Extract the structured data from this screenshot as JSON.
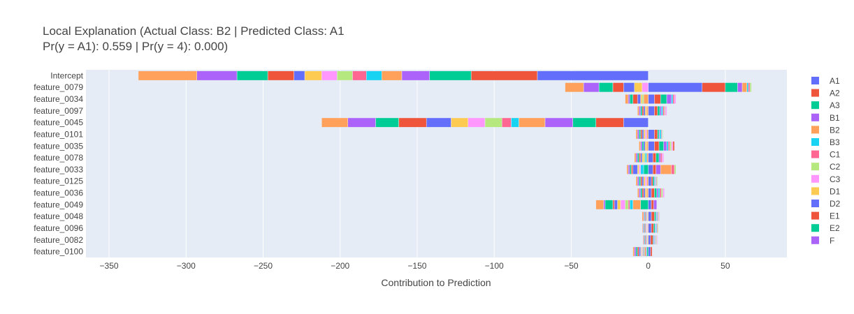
{
  "chart_data": {
    "type": "bar",
    "orientation": "horizontal",
    "barmode": "relative",
    "title": "Local Explanation (Actual Class: B2 | Predicted Class: A1",
    "subtitle": "Pr(y = A1): 0.559 | Pr(y = 4): 0.000)",
    "xlabel": "Contribution to Prediction",
    "ylabel": "",
    "xlim": [
      -365,
      90
    ],
    "x_ticks": [
      -350,
      -300,
      -250,
      -200,
      -150,
      -100,
      -50,
      0,
      50
    ],
    "x_tick_labels": [
      "−350",
      "−300",
      "−250",
      "−200",
      "−150",
      "−100",
      "−50",
      "0",
      "50"
    ],
    "grid": true,
    "legend_position": "right",
    "categories": [
      "Intercept",
      "feature_0079",
      "feature_0034",
      "feature_0097",
      "feature_0045",
      "feature_0101",
      "feature_0035",
      "feature_0078",
      "feature_0033",
      "feature_0125",
      "feature_0036",
      "feature_0049",
      "feature_0048",
      "feature_0096",
      "feature_0082",
      "feature_0100"
    ],
    "series": [
      {
        "name": "A1",
        "color": "#636efa",
        "values": [
          -72,
          35,
          4,
          4,
          -16,
          4,
          4,
          3,
          3,
          2,
          2,
          2,
          2,
          2,
          1.5,
          1.5
        ]
      },
      {
        "name": "A2",
        "color": "#EF553B",
        "values": [
          -43,
          15,
          4,
          2,
          -18,
          2,
          3,
          2,
          2,
          1,
          2,
          1.5,
          2,
          1.5,
          1.5,
          1
        ]
      },
      {
        "name": "A3",
        "color": "#00cc96",
        "values": [
          -27,
          8,
          4,
          1.5,
          -15,
          1,
          3,
          2,
          -3,
          1,
          1.5,
          -5,
          1,
          1,
          0.5,
          -1
        ]
      },
      {
        "name": "B1",
        "color": "#ab63fa",
        "values": [
          -18,
          3,
          3,
          1,
          -18,
          0.5,
          2,
          1,
          3,
          0.5,
          1,
          2,
          0.5,
          0.5,
          0.5,
          -0.5
        ]
      },
      {
        "name": "B2",
        "color": "#FFA15A",
        "values": [
          -13,
          3,
          -3,
          -1,
          -17,
          -1,
          -1,
          -1,
          7,
          -1,
          -1,
          -5,
          -0.5,
          -0.5,
          -0.5,
          -1
        ]
      },
      {
        "name": "B3",
        "color": "#19d3f3",
        "values": [
          -10,
          1,
          1,
          1,
          -5,
          1,
          1,
          -1,
          -2,
          0.5,
          1,
          -2,
          0.5,
          0.5,
          0.5,
          -0.5
        ]
      },
      {
        "name": "C1",
        "color": "#FF6692",
        "values": [
          -9,
          1,
          1,
          1,
          -6,
          0.5,
          1,
          1,
          2,
          0.5,
          1,
          -1,
          0.5,
          0.5,
          0.5,
          -0.5
        ]
      },
      {
        "name": "C2",
        "color": "#B6E880",
        "values": [
          -10,
          1,
          -1,
          0.5,
          -11,
          0.5,
          1,
          -1,
          1,
          0.5,
          1,
          -2,
          0.5,
          0.5,
          0.5,
          -0.5
        ]
      },
      {
        "name": "C3",
        "color": "#FF97FF",
        "values": [
          -10,
          -4,
          1,
          1,
          -11,
          -1,
          1,
          1,
          -1,
          -1,
          1,
          -3,
          0.5,
          -0.5,
          0.5,
          -0.5
        ]
      },
      {
        "name": "D1",
        "color": "#FECB52",
        "values": [
          -11,
          -5,
          -1,
          -1,
          -11,
          -1,
          -1,
          -1,
          -1,
          -1,
          -1,
          -2,
          -0.5,
          -0.5,
          -0.5,
          -0.5
        ]
      },
      {
        "name": "D2",
        "color": "#636efa",
        "values": [
          -7,
          -7,
          -2,
          -1,
          -16,
          -1,
          -1,
          -1,
          -3,
          -1,
          -1,
          -2,
          -0.5,
          -0.5,
          -0.5,
          -1
        ]
      },
      {
        "name": "E1",
        "color": "#EF553B",
        "values": [
          -17,
          -7,
          -3,
          -1,
          -18,
          -1,
          1,
          -1,
          -1,
          -1,
          -1,
          -1,
          -0.5,
          -0.5,
          -0.5,
          -1
        ]
      },
      {
        "name": "E2",
        "color": "#00cc96",
        "values": [
          -20,
          -9,
          -2,
          -1,
          -15,
          -1,
          -1,
          -1,
          -1,
          -1,
          -1,
          -5,
          -0.5,
          -0.5,
          -0.5,
          -1
        ]
      },
      {
        "name": "F",
        "color": "#ab63fa",
        "values": [
          -26,
          -10,
          -1,
          -1,
          -18,
          -1,
          -1,
          -1,
          -1,
          -1,
          -1,
          -1,
          -0.5,
          -0.5,
          -0.5,
          -1
        ]
      },
      {
        "name": "",
        "color": "#FFA15A",
        "values": [
          -38,
          -12,
          -2,
          -1,
          -17,
          -1,
          -1,
          -1,
          -1,
          -1,
          -1,
          -5,
          -1,
          -0.5,
          -0.5,
          -1
        ]
      }
    ]
  }
}
